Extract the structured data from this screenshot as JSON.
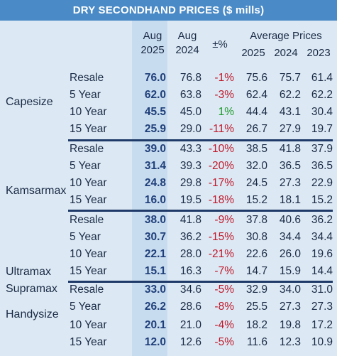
{
  "title": "DRY SECONDHAND PRICES ($ mills)",
  "headers": {
    "aug1": "Aug",
    "aug1_year": "2025",
    "aug2": "Aug",
    "aug2_year": "2024",
    "change": "±%",
    "avg": "Average Prices",
    "avg_2025": "2025",
    "avg_2024": "2024",
    "avg_2023": "2023"
  },
  "groups": [
    {
      "label": "Capesize"
    },
    {
      "label": "Kamsarmax"
    },
    {
      "label": "Ultramax"
    },
    {
      "label": "Supramax"
    },
    {
      "label": "Handysize"
    }
  ],
  "rows": [
    {
      "type": "Resale",
      "aug2025": "76.0",
      "aug2024": "76.8",
      "chg": "-1%",
      "sign": "neg",
      "p2025": "75.6",
      "p2024": "75.7",
      "p2023": "61.4"
    },
    {
      "type": "5 Year",
      "aug2025": "62.0",
      "aug2024": "63.8",
      "chg": "-3%",
      "sign": "neg",
      "p2025": "62.4",
      "p2024": "62.2",
      "p2023": "62.2"
    },
    {
      "type": "10 Year",
      "aug2025": "45.5",
      "aug2024": "45.0",
      "chg": "1%",
      "sign": "pos",
      "p2025": "44.4",
      "p2024": "43.1",
      "p2023": "30.4"
    },
    {
      "type": "15 Year",
      "aug2025": "25.9",
      "aug2024": "29.0",
      "chg": "-11%",
      "sign": "neg",
      "p2025": "26.7",
      "p2024": "27.9",
      "p2023": "19.7"
    },
    {
      "type": "Resale",
      "aug2025": "39.0",
      "aug2024": "43.3",
      "chg": "-10%",
      "sign": "neg",
      "p2025": "38.5",
      "p2024": "41.8",
      "p2023": "37.9"
    },
    {
      "type": "5 Year",
      "aug2025": "31.4",
      "aug2024": "39.3",
      "chg": "-20%",
      "sign": "neg",
      "p2025": "32.0",
      "p2024": "36.5",
      "p2023": "36.5"
    },
    {
      "type": "10 Year",
      "aug2025": "24.8",
      "aug2024": "29.8",
      "chg": "-17%",
      "sign": "neg",
      "p2025": "24.5",
      "p2024": "27.3",
      "p2023": "22.9"
    },
    {
      "type": "15 Year",
      "aug2025": "16.0",
      "aug2024": "19.5",
      "chg": "-18%",
      "sign": "neg",
      "p2025": "15.2",
      "p2024": "18.1",
      "p2023": "15.2"
    },
    {
      "type": "Resale",
      "aug2025": "38.0",
      "aug2024": "41.8",
      "chg": "-9%",
      "sign": "neg",
      "p2025": "37.8",
      "p2024": "40.6",
      "p2023": "36.2"
    },
    {
      "type": "5 Year",
      "aug2025": "30.7",
      "aug2024": "36.2",
      "chg": "-15%",
      "sign": "neg",
      "p2025": "30.8",
      "p2024": "34.4",
      "p2023": "34.4"
    },
    {
      "type": "10 Year",
      "aug2025": "22.1",
      "aug2024": "28.0",
      "chg": "-21%",
      "sign": "neg",
      "p2025": "22.6",
      "p2024": "26.0",
      "p2023": "19.6"
    },
    {
      "type": "15 Year",
      "aug2025": "15.1",
      "aug2024": "16.3",
      "chg": "-7%",
      "sign": "neg",
      "p2025": "14.7",
      "p2024": "15.9",
      "p2023": "14.4"
    },
    {
      "type": "Resale",
      "aug2025": "33.0",
      "aug2024": "34.6",
      "chg": "-5%",
      "sign": "neg",
      "p2025": "32.9",
      "p2024": "34.0",
      "p2023": "31.0"
    },
    {
      "type": "5 Year",
      "aug2025": "26.2",
      "aug2024": "28.6",
      "chg": "-8%",
      "sign": "neg",
      "p2025": "25.5",
      "p2024": "27.3",
      "p2023": "27.3"
    },
    {
      "type": "10 Year",
      "aug2025": "20.1",
      "aug2024": "21.0",
      "chg": "-4%",
      "sign": "neg",
      "p2025": "18.2",
      "p2024": "19.8",
      "p2023": "17.2"
    },
    {
      "type": "15 Year",
      "aug2025": "12.0",
      "aug2024": "12.6",
      "chg": "-5%",
      "sign": "neg",
      "p2025": "11.6",
      "p2024": "12.3",
      "p2023": "10.9"
    }
  ],
  "colors": {
    "title_bg": "#4a8ac6",
    "table_bg": "#dce9f4",
    "aug_col_bg": "#c8dcef",
    "negative": "#c0182a",
    "positive": "#1e9a2a",
    "separator": "#1f3a68"
  }
}
